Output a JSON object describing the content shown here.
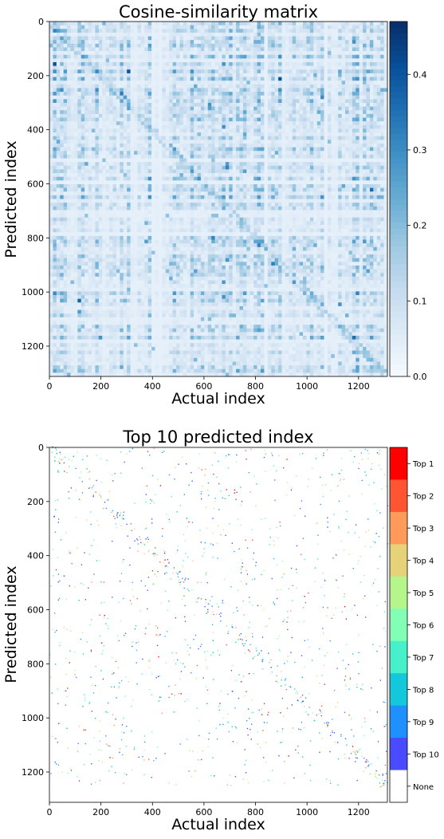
{
  "chart_data": [
    {
      "type": "heatmap",
      "title": "Cosine-similarity matrix",
      "xlabel": "Actual index",
      "ylabel": "Predicted index",
      "xlim": [
        0,
        1312
      ],
      "ylim": [
        1312,
        0
      ],
      "xticks": [
        "0",
        "200",
        "400",
        "600",
        "800",
        "1000",
        "1200"
      ],
      "yticks": [
        "0",
        "200",
        "400",
        "600",
        "800",
        "1000",
        "1200"
      ],
      "colorbar": {
        "range": [
          0.0,
          0.47
        ],
        "ticks": [
          "0.0",
          "0.1",
          "0.2",
          "0.3",
          "0.4"
        ],
        "colormap": "Blues",
        "colors": [
          "#f7fbff",
          "#deebf7",
          "#c6dbef",
          "#9ecae1",
          "#6baed6",
          "#4292c6",
          "#2171b5",
          "#08519c",
          "#08306b"
        ]
      }
    },
    {
      "type": "heatmap",
      "title": "Top 10 predicted index",
      "xlabel": "Actual index",
      "ylabel": "Predicted index",
      "xlim": [
        0,
        1312
      ],
      "ylim": [
        1312,
        0
      ],
      "xticks": [
        "0",
        "200",
        "400",
        "600",
        "800",
        "1000",
        "1200"
      ],
      "yticks": [
        "0",
        "200",
        "400",
        "600",
        "800",
        "1000",
        "1200"
      ],
      "colorbar": {
        "categories": [
          "None",
          "Top 10",
          "Top 9",
          "Top 8",
          "Top 7",
          "Top 6",
          "Top 5",
          "Top 4",
          "Top 3",
          "Top 2",
          "Top 1"
        ],
        "colors": [
          "#ffffff",
          "#4a4aff",
          "#1e90ff",
          "#14c8dc",
          "#46f0c8",
          "#82ffb4",
          "#b4f58c",
          "#e6d278",
          "#ff9b5a",
          "#ff5532",
          "#ff0000"
        ]
      }
    }
  ]
}
